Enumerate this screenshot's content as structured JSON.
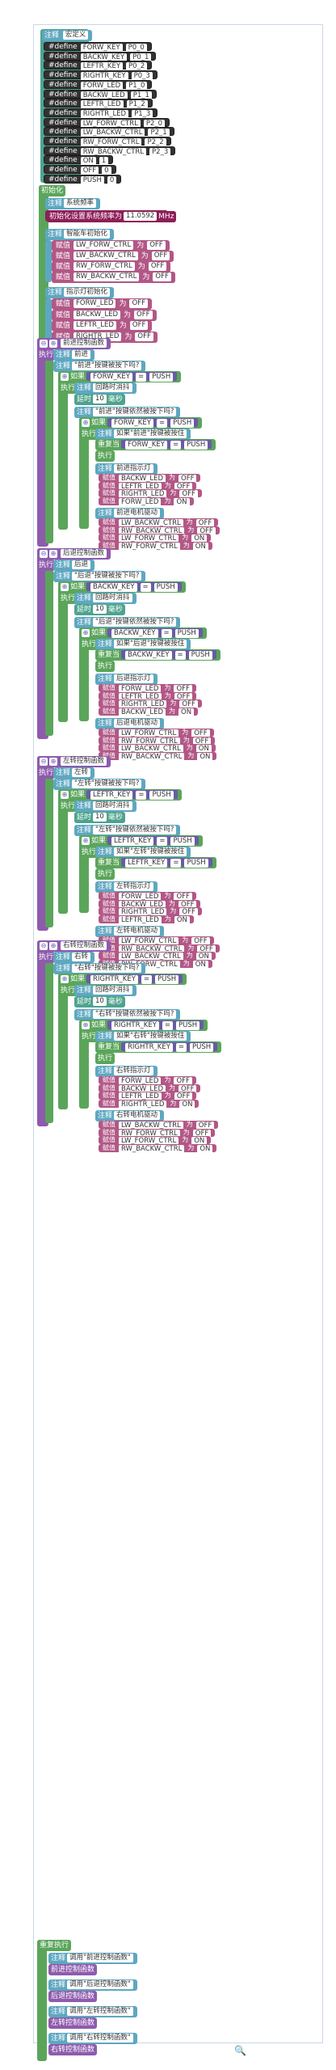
{
  "defines": {
    "header_comment": "注释",
    "header_label": "宏定义",
    "items": [
      {
        "kw": "#define",
        "name": "FORW_KEY",
        "val": "P0_0"
      },
      {
        "kw": "#define",
        "name": "BACKW_KEY",
        "val": "P0_1"
      },
      {
        "kw": "#define",
        "name": "LEFTR_KEY",
        "val": "P0_2"
      },
      {
        "kw": "#define",
        "name": "RIGHTR_KEY",
        "val": "P0_3"
      },
      {
        "kw": "#define",
        "name": "FORW_LED",
        "val": "P1_0"
      },
      {
        "kw": "#define",
        "name": "BACKW_LED",
        "val": "P1_1"
      },
      {
        "kw": "#define",
        "name": "LEFTR_LED",
        "val": "P1_2"
      },
      {
        "kw": "#define",
        "name": "RIGHTR_LED",
        "val": "P1_3"
      },
      {
        "kw": "#define",
        "name": "LW_FORW_CTRL",
        "val": "P2_0"
      },
      {
        "kw": "#define",
        "name": "LW_BACKW_CTRL",
        "val": "P2_1"
      },
      {
        "kw": "#define",
        "name": "RW_FORW_CTRL",
        "val": "P2_2"
      },
      {
        "kw": "#define",
        "name": "RW_BACKW_CTRL",
        "val": "P2_3"
      },
      {
        "kw": "#define",
        "name": "ON",
        "val": "1"
      },
      {
        "kw": "#define",
        "name": "OFF",
        "val": "0"
      },
      {
        "kw": "#define",
        "name": "PUSH",
        "val": "0"
      }
    ]
  },
  "init": {
    "title": "初始化",
    "comment_kw": "注释",
    "sys_clock_label": "系统频率",
    "sys_clock_set": "初始化设置系统频率为",
    "sys_clock_value": "11.0592",
    "sys_clock_unit": "MHz",
    "car_label": "智能车初始化",
    "assign_kw": "赋值",
    "to_kw": "为",
    "car_assigns": [
      {
        "name": "LW_FORW_CTRL",
        "val": "OFF"
      },
      {
        "name": "LW_BACKW_CTRL",
        "val": "OFF"
      },
      {
        "name": "RW_FORW_CTRL",
        "val": "OFF"
      },
      {
        "name": "RW_BACKW_CTRL",
        "val": "OFF"
      }
    ],
    "led_label": "指示灯初始化",
    "led_assigns": [
      {
        "name": "FORW_LED",
        "val": "OFF"
      },
      {
        "name": "BACKW_LED",
        "val": "OFF"
      },
      {
        "name": "LEFTR_LED",
        "val": "OFF"
      },
      {
        "name": "RIGHTR_LED",
        "val": "OFF"
      }
    ]
  },
  "common": {
    "exec": "执行",
    "comment": "注释",
    "if": "如果",
    "eq": "=",
    "push": "PUSH",
    "delay_kw": "延时",
    "delay_val": "10",
    "delay_unit": "毫秒",
    "debounce": "回路时消抖",
    "repeat": "重复当",
    "assign": "赋值",
    "to": "为",
    "off": "OFF",
    "on": "ON",
    "led_status": "指示灯",
    "motor_label": "电机驱动"
  },
  "functions": [
    {
      "title": "前进控制函数",
      "cmt": "前进",
      "q1": "\"前进\"按键被按下吗?",
      "key": "FORW_KEY",
      "q2": "\"前进\"按键依然被按下吗?",
      "loop": "如果\"前进\"按键被按住",
      "leds": [
        {
          "n": "BACKW_LED",
          "v": "OFF"
        },
        {
          "n": "LEFTR_LED",
          "v": "OFF"
        },
        {
          "n": "RIGHTR_LED",
          "v": "OFF"
        },
        {
          "n": "FORW_LED",
          "v": "ON"
        }
      ],
      "motors": [
        {
          "n": "LW_BACKW_CTRL",
          "v": "OFF"
        },
        {
          "n": "RW_BACKW_CTRL",
          "v": "OFF"
        },
        {
          "n": "LW_FORW_CTRL",
          "v": "ON"
        },
        {
          "n": "RW_FORW_CTRL",
          "v": "ON"
        }
      ]
    },
    {
      "title": "后退控制函数",
      "cmt": "后退",
      "q1": "\"后退\"按键被按下吗?",
      "key": "BACKW_KEY",
      "q2": "\"后退\"按键依然被按下吗?",
      "loop": "如果\"后退\"按键被按住",
      "leds": [
        {
          "n": "FORW_LED",
          "v": "OFF"
        },
        {
          "n": "LEFTR_LED",
          "v": "OFF"
        },
        {
          "n": "RIGHTR_LED",
          "v": "OFF"
        },
        {
          "n": "BACKW_LED",
          "v": "ON"
        }
      ],
      "motors": [
        {
          "n": "LW_FORW_CTRL",
          "v": "OFF"
        },
        {
          "n": "RW_FORW_CTRL",
          "v": "OFF"
        },
        {
          "n": "LW_BACKW_CTRL",
          "v": "ON"
        },
        {
          "n": "RW_BACKW_CTRL",
          "v": "ON"
        }
      ]
    },
    {
      "title": "左转控制函数",
      "cmt": "左转",
      "q1": "\"左转\"按键被按下吗?",
      "key": "LEFTR_KEY",
      "q2": "\"左转\"按键依然被按下吗?",
      "loop": "如果\"左转\"按键被按住",
      "leds": [
        {
          "n": "FORW_LED",
          "v": "OFF"
        },
        {
          "n": "BACKW_LED",
          "v": "OFF"
        },
        {
          "n": "RIGHTR_LED",
          "v": "OFF"
        },
        {
          "n": "LEFTR_LED",
          "v": "ON"
        }
      ],
      "motors": [
        {
          "n": "LW_FORW_CTRL",
          "v": "OFF"
        },
        {
          "n": "RW_BACKW_CTRL",
          "v": "OFF"
        },
        {
          "n": "LW_BACKW_CTRL",
          "v": "ON"
        },
        {
          "n": "RW_FORW_CTRL",
          "v": "ON"
        }
      ]
    },
    {
      "title": "右转控制函数",
      "cmt": "右转",
      "q1": "\"右转\"按键被按下吗?",
      "key": "RIGHTR_KEY",
      "q2": "\"右转\"按键依然被按下吗?",
      "loop": "如果\"右转\"按键被按住",
      "leds": [
        {
          "n": "FORW_LED",
          "v": "OFF"
        },
        {
          "n": "BACKW_LED",
          "v": "OFF"
        },
        {
          "n": "LEFTR_LED",
          "v": "OFF"
        },
        {
          "n": "RIGHTR_LED",
          "v": "ON"
        }
      ],
      "motors": [
        {
          "n": "LW_BACKW_CTRL",
          "v": "OFF"
        },
        {
          "n": "RW_FORW_CTRL",
          "v": "OFF"
        },
        {
          "n": "LW_FORW_CTRL",
          "v": "ON"
        },
        {
          "n": "RW_BACKW_CTRL",
          "v": "ON"
        }
      ]
    }
  ],
  "main_loop": {
    "title": "重复执行",
    "comment": "注释",
    "call": "调用",
    "calls": [
      {
        "cmt": "调用\"前进控制函数\"",
        "fn": "前进控制函数"
      },
      {
        "cmt": "调用\"后退控制函数\"",
        "fn": "后退控制函数"
      },
      {
        "cmt": "调用\"左转控制函数\"",
        "fn": "左转控制函数"
      },
      {
        "cmt": "调用\"右转控制函数\"",
        "fn": "右转控制函数"
      }
    ]
  },
  "colors": {
    "comment": "#5ea7c1",
    "control": "#5ba55b",
    "assign": "#b25786",
    "function": "#8e5bad",
    "define": "#323232"
  },
  "zoom_icon": "zoom-icon"
}
